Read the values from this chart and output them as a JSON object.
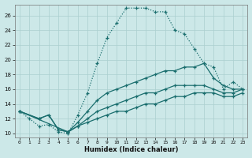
{
  "xlabel": "Humidex (Indice chaleur)",
  "bg_color": "#cce8e8",
  "grid_color": "#aacfcf",
  "line_color": "#1a6e6e",
  "xlim": [
    -0.5,
    23.5
  ],
  "ylim": [
    9.5,
    27.5
  ],
  "xticks": [
    0,
    1,
    2,
    3,
    4,
    5,
    6,
    7,
    8,
    9,
    10,
    11,
    12,
    13,
    14,
    15,
    16,
    17,
    18,
    19,
    20,
    21,
    22,
    23
  ],
  "yticks": [
    10,
    12,
    14,
    16,
    18,
    20,
    22,
    24,
    26
  ],
  "line1_x": [
    0,
    1,
    2,
    3,
    4,
    5,
    6,
    7,
    8,
    9,
    10,
    11,
    12,
    13,
    14,
    15,
    16,
    17,
    18,
    19,
    20,
    21,
    22,
    23
  ],
  "line1_y": [
    13,
    12,
    11,
    11.2,
    10.2,
    10,
    12.5,
    15.5,
    19.5,
    23,
    25,
    27,
    27,
    27,
    26.5,
    26.5,
    24,
    23.5,
    21.5,
    19.5,
    19,
    16,
    17,
    16
  ],
  "line1_style": "dotted",
  "line2_x": [
    0,
    2,
    3,
    4,
    5,
    6,
    7,
    8,
    9,
    10,
    11,
    12,
    13,
    14,
    15,
    16,
    17,
    18,
    19,
    20,
    21,
    22,
    23
  ],
  "line2_y": [
    13,
    12,
    12.5,
    10.5,
    10.2,
    11.5,
    13,
    14.5,
    15.5,
    16,
    16.5,
    17,
    17.5,
    18,
    18.5,
    18.5,
    19,
    19,
    19.5,
    17.5,
    16.5,
    16,
    16
  ],
  "line2_style": "solid",
  "line3_x": [
    0,
    2,
    3,
    4,
    5,
    6,
    7,
    8,
    9,
    10,
    11,
    12,
    13,
    14,
    15,
    16,
    17,
    18,
    19,
    20,
    21,
    22,
    23
  ],
  "line3_y": [
    13,
    12,
    12.5,
    10.5,
    10.2,
    11,
    12,
    13,
    13.5,
    14,
    14.5,
    15,
    15.5,
    15.5,
    16,
    16.5,
    16.5,
    16.5,
    16.5,
    16,
    15.5,
    15.5,
    16
  ],
  "line3_style": "solid",
  "line4_x": [
    0,
    5,
    6,
    7,
    8,
    9,
    10,
    11,
    12,
    13,
    14,
    15,
    16,
    17,
    18,
    19,
    20,
    21,
    22,
    23
  ],
  "line4_y": [
    13,
    10.2,
    11,
    11.5,
    12,
    12.5,
    13,
    13,
    13.5,
    14,
    14,
    14.5,
    15,
    15,
    15.5,
    15.5,
    15.5,
    15,
    15,
    15.5
  ],
  "line4_style": "solid"
}
